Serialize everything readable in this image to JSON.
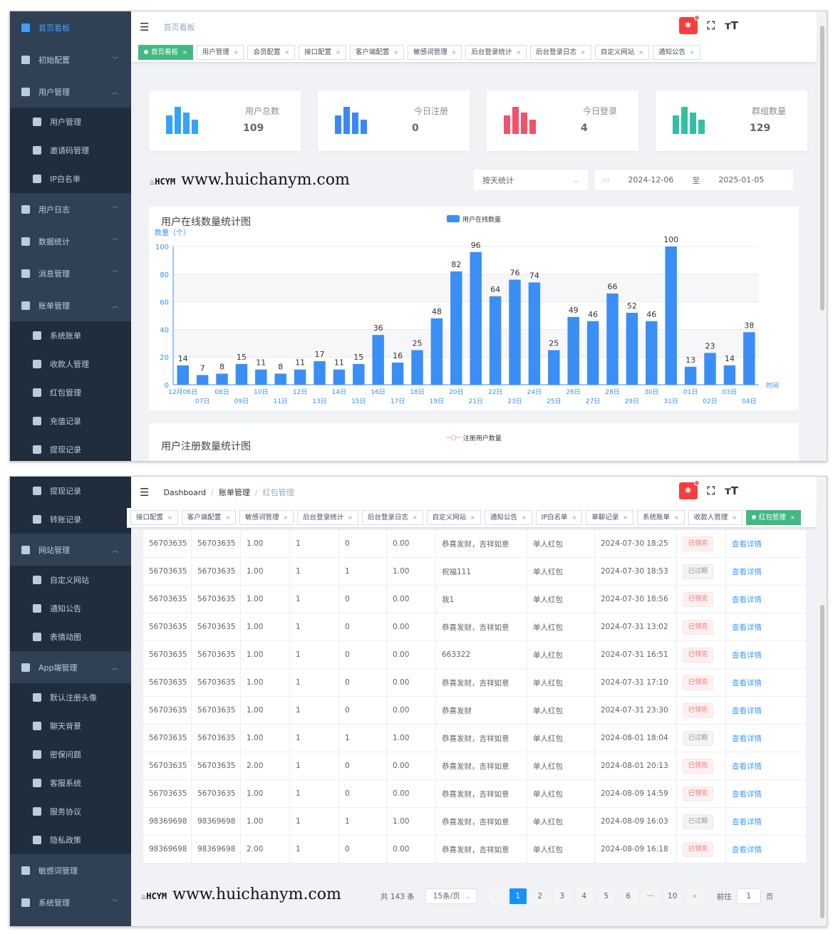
{
  "top": {
    "sidebar": [
      {
        "label": "首页看板",
        "active": true
      },
      {
        "label": "初始配置",
        "arrow": "down"
      },
      {
        "label": "用户管理",
        "arrow": "up"
      },
      {
        "label": "用户管理",
        "sub": true
      },
      {
        "label": "邀请码管理",
        "sub": true
      },
      {
        "label": "IP白名单",
        "sub": true
      },
      {
        "label": "用户日志",
        "arrow": "down"
      },
      {
        "label": "数据统计",
        "arrow": "down"
      },
      {
        "label": "消息管理",
        "arrow": "down"
      },
      {
        "label": "账单管理",
        "arrow": "up"
      },
      {
        "label": "系统账单",
        "sub": true
      },
      {
        "label": "收款人管理",
        "sub": true
      },
      {
        "label": "红包管理",
        "sub": true
      },
      {
        "label": "充值记录",
        "sub": true
      },
      {
        "label": "提现记录",
        "sub": true
      }
    ],
    "breadcrumb": [
      "首页看板"
    ],
    "tags": [
      {
        "label": "首页看板",
        "active": true
      },
      {
        "label": "用户管理"
      },
      {
        "label": "会员配置"
      },
      {
        "label": "接口配置"
      },
      {
        "label": "客户端配置"
      },
      {
        "label": "敏感词管理"
      },
      {
        "label": "后台登录统计"
      },
      {
        "label": "后台登录日志"
      },
      {
        "label": "自定义网站"
      },
      {
        "label": "通知公告"
      }
    ],
    "cards": [
      {
        "label": "用户总数",
        "value": "109",
        "color": "#36a3f7"
      },
      {
        "label": "今日注册",
        "value": "0",
        "color": "#3888fa"
      },
      {
        "label": "今日登录",
        "value": "4",
        "color": "#f4516c"
      },
      {
        "label": "群组数量",
        "value": "129",
        "color": "#34bfa3"
      }
    ],
    "filter": {
      "mode": "按天统计",
      "start": "2024-12-06",
      "sep": "至",
      "end": "2025-01-05"
    },
    "chart2": {
      "title": "用户注册数量统计图",
      "legend": "注册用户数量"
    }
  },
  "chart_data": {
    "type": "bar",
    "title": "用户在线数量统计图",
    "legend": "用户在线数量",
    "ylabel": "数量（个）",
    "xlabel": "时间",
    "ylim": [
      0,
      100
    ],
    "yticks": [
      0,
      20,
      40,
      60,
      80,
      100
    ],
    "grid": true,
    "legend_position": "top-center",
    "color": "#3a8ef6",
    "categories": [
      "12月06日",
      "07日",
      "08日",
      "09日",
      "10日",
      "11日",
      "12日",
      "13日",
      "14日",
      "15日",
      "16日",
      "17日",
      "18日",
      "19日",
      "20日",
      "21日",
      "22日",
      "23日",
      "24日",
      "25日",
      "26日",
      "27日",
      "28日",
      "29日",
      "30日",
      "31日",
      "01日",
      "02日",
      "03日",
      "04日"
    ],
    "values": [
      14,
      7,
      8,
      15,
      11,
      8,
      11,
      17,
      11,
      15,
      36,
      16,
      25,
      48,
      82,
      96,
      64,
      76,
      74,
      25,
      49,
      46,
      66,
      52,
      46,
      100,
      13,
      23,
      14,
      38
    ]
  },
  "bottom": {
    "sidebar": [
      {
        "label": "提现记录",
        "sub": true
      },
      {
        "label": "转账记录",
        "sub": true
      },
      {
        "label": "网站管理",
        "arrow": "up"
      },
      {
        "label": "自定义网站",
        "sub": true
      },
      {
        "label": "通知公告",
        "sub": true
      },
      {
        "label": "表情动图",
        "sub": true
      },
      {
        "label": "App端管理",
        "arrow": "up"
      },
      {
        "label": "默认注册头像",
        "sub": true
      },
      {
        "label": "聊天背景",
        "sub": true
      },
      {
        "label": "密保问题",
        "sub": true
      },
      {
        "label": "客服系统",
        "sub": true
      },
      {
        "label": "服务协议",
        "sub": true
      },
      {
        "label": "隐私政策",
        "sub": true
      },
      {
        "label": "敏感词管理"
      },
      {
        "label": "系统管理",
        "arrow": "down"
      }
    ],
    "breadcrumb": [
      "Dashboard",
      "账单管理",
      "红包管理"
    ],
    "tags": [
      {
        "label": "接口配置"
      },
      {
        "label": "客户端配置"
      },
      {
        "label": "敏感词管理"
      },
      {
        "label": "后台登录统计"
      },
      {
        "label": "后台登录日志"
      },
      {
        "label": "自定义网站"
      },
      {
        "label": "通知公告"
      },
      {
        "label": "IP白名单"
      },
      {
        "label": "单聊记录"
      },
      {
        "label": "系统账单"
      },
      {
        "label": "收款人管理"
      },
      {
        "label": "红包管理",
        "active": true
      }
    ],
    "rows": [
      [
        "56703635",
        "56703635",
        "1.00",
        "1",
        "0",
        "0.00",
        "恭喜发财，吉祥如意",
        "单人红包",
        "2024-07-30 18:25",
        "已领完"
      ],
      [
        "56703635",
        "56703635",
        "1.00",
        "1",
        "1",
        "1.00",
        "祝福111",
        "单人红包",
        "2024-07-30 18:53",
        "已过期"
      ],
      [
        "56703635",
        "56703635",
        "1.00",
        "1",
        "0",
        "0.00",
        "我1",
        "单人红包",
        "2024-07-30 18:56",
        "已领完"
      ],
      [
        "56703635",
        "56703635",
        "1.00",
        "1",
        "0",
        "0.00",
        "恭喜发财，吉祥如意",
        "单人红包",
        "2024-07-31 13:02",
        "已领完"
      ],
      [
        "56703635",
        "56703635",
        "1.00",
        "1",
        "0",
        "0.00",
        "663322",
        "单人红包",
        "2024-07-31 16:51",
        "已领完"
      ],
      [
        "56703635",
        "56703635",
        "1.00",
        "1",
        "0",
        "0.00",
        "恭喜发财，吉祥如意",
        "单人红包",
        "2024-07-31 17:10",
        "已领完"
      ],
      [
        "56703635",
        "56703635",
        "1.00",
        "1",
        "0",
        "0.00",
        "恭喜发财",
        "单人红包",
        "2024-07-31 23:30",
        "已领完"
      ],
      [
        "56703635",
        "56703635",
        "1.00",
        "1",
        "1",
        "1.00",
        "恭喜发财，吉祥如意",
        "单人红包",
        "2024-08-01 18:04",
        "已过期"
      ],
      [
        "56703635",
        "56703635",
        "2.00",
        "1",
        "0",
        "0.00",
        "恭喜发财，吉祥如意",
        "单人红包",
        "2024-08-01 20:13",
        "已领完"
      ],
      [
        "56703635",
        "56703635",
        "1.00",
        "1",
        "0",
        "0.00",
        "恭喜发财，吉祥如意",
        "单人红包",
        "2024-08-09 14:59",
        "已领完"
      ],
      [
        "98369698",
        "98369698",
        "1.00",
        "1",
        "1",
        "1.00",
        "恭喜发财，吉祥如意",
        "单人红包",
        "2024-08-09 16:03",
        "已过期"
      ],
      [
        "98369698",
        "98369698",
        "2.00",
        "1",
        "0",
        "0.00",
        "恭喜发财，吉祥如意",
        "单人红包",
        "2024-08-09 16:18",
        "已领完"
      ]
    ],
    "action_label": "查看详情",
    "pager": {
      "total": "共 143 条",
      "size": "15条/页",
      "prev": "‹",
      "pages": [
        "1",
        "2",
        "3",
        "4",
        "5",
        "6",
        "···",
        "10"
      ],
      "current": "1",
      "next": "›",
      "goto": "前往",
      "goto_value": "1",
      "page_unit": "页"
    }
  },
  "watermark": "HCYM www.huichanym.com"
}
